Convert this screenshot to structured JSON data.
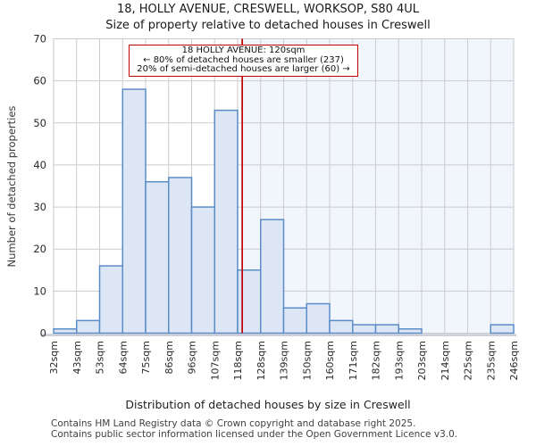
{
  "chart_data": {
    "type": "bar",
    "title": "18, HOLLY AVENUE, CRESWELL, WORKSOP, S80 4UL",
    "subtitle": "Size of property relative to detached houses in Creswell",
    "xlabel": "Distribution of detached houses by size in Creswell",
    "ylabel": "Number of detached properties",
    "categories": [
      "32sqm",
      "43sqm",
      "53sqm",
      "64sqm",
      "75sqm",
      "86sqm",
      "96sqm",
      "107sqm",
      "118sqm",
      "128sqm",
      "139sqm",
      "150sqm",
      "160sqm",
      "171sqm",
      "182sqm",
      "193sqm",
      "203sqm",
      "214sqm",
      "225sqm",
      "235sqm",
      "246sqm"
    ],
    "bin_edges_sqm": [
      32,
      43,
      53,
      64,
      75,
      86,
      96,
      107,
      118,
      128,
      139,
      150,
      160,
      171,
      182,
      193,
      203,
      214,
      225,
      235,
      246
    ],
    "values": [
      1,
      3,
      16,
      58,
      36,
      37,
      30,
      53,
      15,
      27,
      6,
      7,
      3,
      2,
      2,
      1,
      0,
      0,
      0,
      2
    ],
    "ylim": [
      0,
      70
    ],
    "y_ticks": [
      0,
      10,
      20,
      30,
      40,
      50,
      60,
      70
    ],
    "grid": true,
    "legend": "none",
    "marker": {
      "value_sqm": 120,
      "label_lines": [
        "18 HOLLY AVENUE: 120sqm",
        "← 80% of detached houses are smaller (237)",
        "20% of semi-detached houses are larger (60) →"
      ],
      "smaller_count": 237,
      "smaller_pct": 80,
      "larger_count": 60,
      "larger_pct": 20
    },
    "colors": {
      "bar_fill": "#dce6f4",
      "bar_border": "#5b8cc8",
      "marker_line": "#c00000",
      "shade_right_of_marker": "#f1f5fc",
      "grid_line": "#cccccc",
      "plot_border": "#c9c9c9",
      "bottom_spine": "#c9ced8"
    }
  },
  "footer": {
    "line1": "Contains HM Land Registry data © Crown copyright and database right 2025.",
    "line2": "Contains public sector information licensed under the Open Government Licence v3.0."
  }
}
